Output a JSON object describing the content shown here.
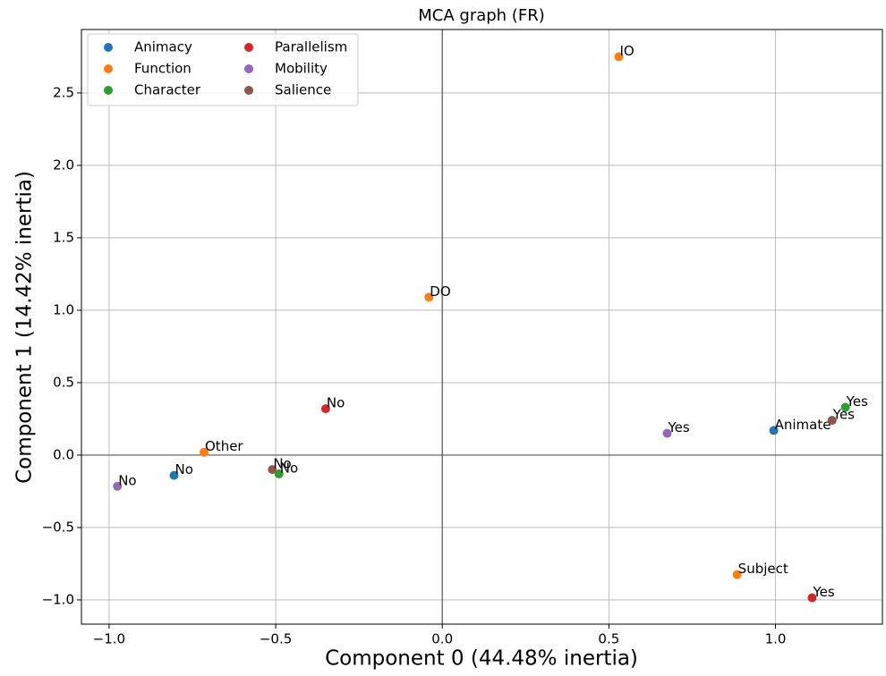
{
  "chart_data": {
    "type": "scatter",
    "title": "MCA graph (FR)",
    "x_label": "Component 0 (44.48% inertia)",
    "y_label": "Component 1 (14.42% inertia)",
    "xlim": [
      -1.083,
      1.321
    ],
    "ylim": [
      -1.167,
      2.938
    ],
    "xticks": [
      {
        "value": -1.0,
        "label": "−1.0"
      },
      {
        "value": -0.5,
        "label": "−0.5"
      },
      {
        "value": 0.0,
        "label": "0.0"
      },
      {
        "value": 0.5,
        "label": "0.5"
      },
      {
        "value": 1.0,
        "label": "1.0"
      }
    ],
    "yticks": [
      {
        "value": -1.0,
        "label": "−1.0"
      },
      {
        "value": -0.5,
        "label": "−0.5"
      },
      {
        "value": 0.0,
        "label": "0.0"
      },
      {
        "value": 0.5,
        "label": "0.5"
      },
      {
        "value": 1.0,
        "label": "1.0"
      },
      {
        "value": 1.5,
        "label": "1.5"
      },
      {
        "value": 2.0,
        "label": "2.0"
      },
      {
        "value": 2.5,
        "label": "2.5"
      }
    ],
    "grid": true,
    "zero_lines": true,
    "legend": "upper-left",
    "series": [
      {
        "name": "Animacy",
        "color": "#1f77b4",
        "x": [
          0.995,
          -0.805
        ],
        "y": [
          0.17,
          -0.14
        ],
        "labels": [
          "Animate",
          "No"
        ]
      },
      {
        "name": "Function",
        "color": "#ff7f0e",
        "x": [
          0.53,
          -0.04,
          -0.715,
          0.885
        ],
        "y": [
          2.75,
          1.09,
          0.02,
          -0.825
        ],
        "labels": [
          "IO",
          "DO",
          "Other",
          "Subject"
        ]
      },
      {
        "name": "Character",
        "color": "#2ca02c",
        "x": [
          1.21,
          -0.49
        ],
        "y": [
          0.33,
          -0.13
        ],
        "labels": [
          "Yes",
          "No"
        ]
      },
      {
        "name": "Parallelism",
        "color": "#d62728",
        "x": [
          -0.35,
          1.11
        ],
        "y": [
          0.32,
          -0.985
        ],
        "labels": [
          "No",
          "Yes"
        ]
      },
      {
        "name": "Mobility",
        "color": "#9467bd",
        "x": [
          0.675,
          -0.975
        ],
        "y": [
          0.15,
          -0.215
        ],
        "labels": [
          "Yes",
          "No"
        ]
      },
      {
        "name": "Salience",
        "color": "#8c564b",
        "x": [
          1.17,
          -0.51
        ],
        "y": [
          0.24,
          -0.1
        ],
        "labels": [
          "Yes",
          "No"
        ]
      }
    ]
  }
}
